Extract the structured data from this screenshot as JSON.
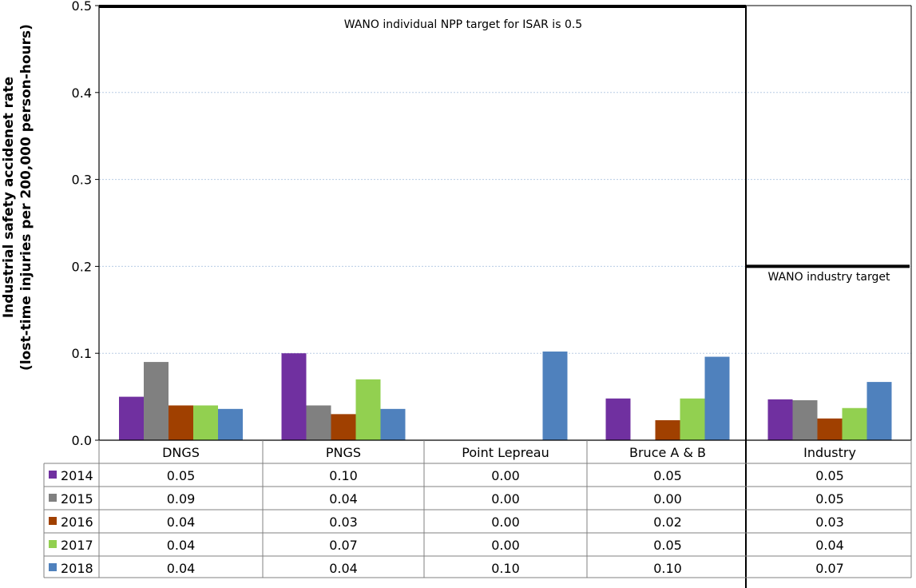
{
  "chart_data": {
    "type": "bar",
    "ylabel": [
      "Industrial safety accidenet rate",
      "(lost-time injuries per 200,000 person-hours)"
    ],
    "ylim": [
      0,
      0.5
    ],
    "yticks": [
      "0.0",
      "0.1",
      "0.2",
      "0.3",
      "0.4",
      "0.5"
    ],
    "grid": true,
    "legend": "data table, left",
    "categories": [
      "DNGS",
      "PNGS",
      "Point Lepreau",
      "Bruce A & B",
      "Industry"
    ],
    "series": [
      {
        "name": "2014",
        "color": "#7030a0",
        "values": [
          0.05,
          0.1,
          0.0,
          0.048,
          0.047
        ],
        "labels": [
          "0.05",
          "0.10",
          "0.00",
          "0.05",
          "0.05"
        ]
      },
      {
        "name": "2015",
        "color": "#808080",
        "values": [
          0.09,
          0.04,
          0.0,
          0.0,
          0.046
        ],
        "labels": [
          "0.09",
          "0.04",
          "0.00",
          "0.00",
          "0.05"
        ]
      },
      {
        "name": "2016",
        "color": "#a04000",
        "values": [
          0.04,
          0.03,
          0.0,
          0.023,
          0.025
        ],
        "labels": [
          "0.04",
          "0.03",
          "0.00",
          "0.02",
          "0.03"
        ]
      },
      {
        "name": "2017",
        "color": "#92d050",
        "values": [
          0.04,
          0.07,
          0.0,
          0.048,
          0.037
        ],
        "labels": [
          "0.04",
          "0.07",
          "0.00",
          "0.05",
          "0.04"
        ]
      },
      {
        "name": "2018",
        "color": "#4f81bd",
        "values": [
          0.036,
          0.036,
          0.102,
          0.096,
          0.067
        ],
        "labels": [
          "0.04",
          "0.04",
          "0.10",
          "0.10",
          "0.07"
        ]
      }
    ],
    "annotations": [
      {
        "text": "WANO individual NPP target for ISAR is 0.5",
        "value": 0.5
      },
      {
        "text": "WANO industry target",
        "value": 0.2
      }
    ]
  }
}
